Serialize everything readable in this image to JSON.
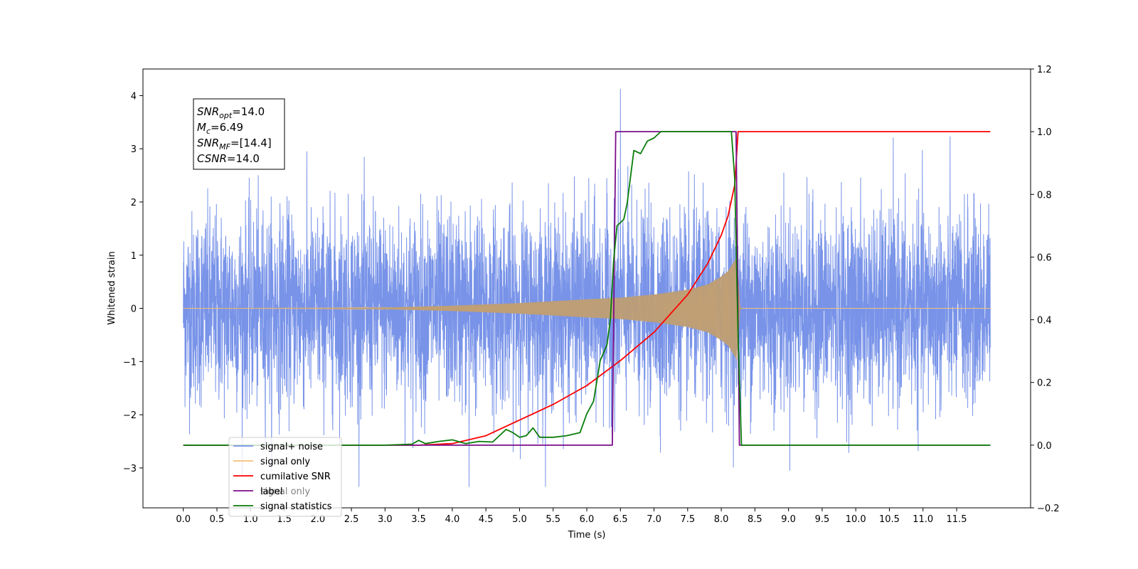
{
  "chart_data": {
    "type": "line",
    "xlabel": "Time (s)",
    "ylabel": "Whitened strain",
    "x_range": [
      -0.6,
      12.6
    ],
    "x_ticks": [
      0.0,
      0.5,
      1.0,
      1.5,
      2.0,
      2.5,
      3.0,
      3.5,
      4.0,
      4.5,
      5.0,
      5.5,
      6.0,
      6.5,
      7.0,
      7.5,
      8.0,
      8.5,
      9.0,
      9.5,
      10.0,
      10.5,
      11.0,
      11.5
    ],
    "x_tick_labels": [
      "0.0",
      "0.5",
      "1.0",
      "1.5",
      "2.0",
      "2.5",
      "3.0",
      "3.5",
      "4.0",
      "4.5",
      "5.0",
      "5.5",
      "6.0",
      "6.5",
      "7.0",
      "7.5",
      "8.0",
      "8.5",
      "9.0",
      "9.5",
      "10.0",
      "10.5",
      "11.0",
      "11.5"
    ],
    "y_left_range": [
      -3.75,
      4.5
    ],
    "y_left_ticks": [
      -3,
      -2,
      -1,
      0,
      1,
      2,
      3,
      4
    ],
    "y_left_tick_labels": [
      "−3",
      "−2",
      "−1",
      "0",
      "1",
      "2",
      "3",
      "4"
    ],
    "y_right_range": [
      -0.2,
      1.2
    ],
    "y_right_ticks": [
      -0.2,
      0.0,
      0.2,
      0.4,
      0.6,
      0.8,
      1.0,
      1.2
    ],
    "y_right_tick_labels": [
      "−0.2",
      "0.0",
      "0.2",
      "0.4",
      "0.6",
      "0.8",
      "1.0",
      "1.2"
    ],
    "grid": false,
    "legend_placement": "lower-left",
    "annotation": {
      "lines": [
        {
          "base": "SNR",
          "sub": "opt",
          "rest": "=14.0"
        },
        {
          "base": "M",
          "sub": "c",
          "rest": "=6.49"
        },
        {
          "base": "SNR",
          "sub": "MF",
          "rest": "=[14.4]"
        },
        {
          "base": "CSNR",
          "sub": "",
          "rest": "=14.0"
        }
      ]
    },
    "series": [
      {
        "name": "signal+ noise",
        "color": "#7893e8",
        "axis": "left",
        "kind": "noise",
        "x_start": 0.0,
        "x_end": 12.0,
        "amplitude_std": 0.9,
        "y_max": 4.12,
        "y_min": -3.35
      },
      {
        "name": "signal only",
        "color": "#f5c07a",
        "axis": "left",
        "kind": "chirp",
        "x_start": 0.0,
        "x_end": 12.0,
        "merger_time": 8.24,
        "envelope": [
          [
            0.0,
            0.0
          ],
          [
            2.0,
            0.005
          ],
          [
            3.0,
            0.015
          ],
          [
            4.0,
            0.05
          ],
          [
            5.0,
            0.1
          ],
          [
            6.0,
            0.17
          ],
          [
            6.5,
            0.2
          ],
          [
            7.0,
            0.26
          ],
          [
            7.5,
            0.35
          ],
          [
            7.8,
            0.45
          ],
          [
            8.0,
            0.6
          ],
          [
            8.1,
            0.7
          ],
          [
            8.2,
            0.9
          ],
          [
            8.24,
            1.0
          ],
          [
            8.27,
            0.05
          ],
          [
            8.3,
            0.0
          ],
          [
            12.0,
            0.0
          ]
        ]
      },
      {
        "name": "cumilative SNR",
        "color": "#ff0000",
        "axis": "right",
        "points": [
          [
            0.0,
            0.0
          ],
          [
            3.5,
            0.0
          ],
          [
            4.0,
            0.005
          ],
          [
            4.5,
            0.03
          ],
          [
            5.0,
            0.08
          ],
          [
            5.5,
            0.13
          ],
          [
            6.0,
            0.19
          ],
          [
            6.5,
            0.27
          ],
          [
            7.0,
            0.36
          ],
          [
            7.5,
            0.48
          ],
          [
            7.8,
            0.58
          ],
          [
            8.0,
            0.67
          ],
          [
            8.1,
            0.73
          ],
          [
            8.2,
            0.83
          ],
          [
            8.25,
            1.0
          ],
          [
            12.0,
            1.0
          ]
        ]
      },
      {
        "name": "label",
        "color": "#7b0d8a",
        "axis": "right",
        "points": [
          [
            0.0,
            0.0
          ],
          [
            6.38,
            0.0
          ],
          [
            6.43,
            1.0
          ],
          [
            8.22,
            1.0
          ],
          [
            8.27,
            0.0
          ],
          [
            12.0,
            0.0
          ]
        ]
      },
      {
        "name": "signal statistics",
        "color": "#0a7d0a",
        "axis": "right",
        "points": [
          [
            0.0,
            0.0
          ],
          [
            3.0,
            0.0
          ],
          [
            3.4,
            0.003
          ],
          [
            3.5,
            0.015
          ],
          [
            3.6,
            0.005
          ],
          [
            3.8,
            0.012
          ],
          [
            4.0,
            0.017
          ],
          [
            4.2,
            0.005
          ],
          [
            4.4,
            0.012
          ],
          [
            4.6,
            0.01
          ],
          [
            4.7,
            0.03
          ],
          [
            4.8,
            0.05
          ],
          [
            4.9,
            0.04
          ],
          [
            5.0,
            0.025
          ],
          [
            5.1,
            0.03
          ],
          [
            5.2,
            0.055
          ],
          [
            5.3,
            0.025
          ],
          [
            5.5,
            0.025
          ],
          [
            5.7,
            0.03
          ],
          [
            5.9,
            0.04
          ],
          [
            6.0,
            0.1
          ],
          [
            6.1,
            0.14
          ],
          [
            6.2,
            0.27
          ],
          [
            6.3,
            0.32
          ],
          [
            6.35,
            0.4
          ],
          [
            6.4,
            0.59
          ],
          [
            6.45,
            0.7
          ],
          [
            6.55,
            0.72
          ],
          [
            6.6,
            0.77
          ],
          [
            6.7,
            0.94
          ],
          [
            6.8,
            0.93
          ],
          [
            6.9,
            0.97
          ],
          [
            7.0,
            0.98
          ],
          [
            7.1,
            1.0
          ],
          [
            8.15,
            1.0
          ],
          [
            8.2,
            0.85
          ],
          [
            8.25,
            0.35
          ],
          [
            8.3,
            0.0
          ],
          [
            12.0,
            0.0
          ]
        ]
      }
    ]
  },
  "legend": {
    "entries": [
      "signal+ noise",
      "signal only",
      "cumilative SNR",
      "label",
      "signal statistics"
    ],
    "ghost_entries": [
      "signal+ noise",
      "signal only",
      "cumilative SNR",
      "signal only",
      "signal statistics"
    ]
  }
}
